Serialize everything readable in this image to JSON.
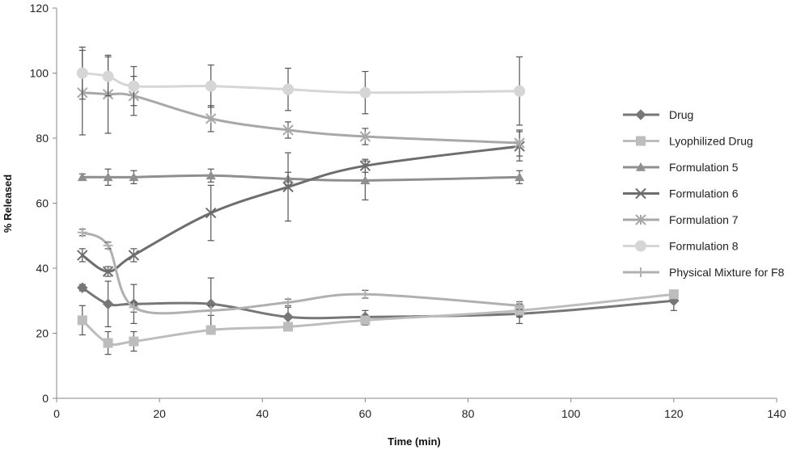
{
  "chart_data": {
    "type": "line",
    "title": "",
    "xlabel": "Time (min)",
    "ylabel": "% Released",
    "xlim": [
      0,
      140
    ],
    "ylim": [
      0,
      120
    ],
    "xticks": [
      "0",
      "20",
      "40",
      "60",
      "80",
      "100",
      "120",
      "140"
    ],
    "yticks": [
      "0",
      "20",
      "40",
      "60",
      "80",
      "100",
      "120"
    ],
    "grid": false,
    "legend": "right",
    "series": [
      {
        "name": "Drug",
        "color": "#777777",
        "marker": "diamond",
        "x": [
          5,
          10,
          15,
          30,
          45,
          60,
          90,
          120
        ],
        "y": [
          34,
          29,
          29,
          29,
          25,
          25,
          26,
          30
        ],
        "err": [
          1,
          7,
          6,
          8,
          3,
          2,
          3,
          3
        ]
      },
      {
        "name": "Lyophilized Drug",
        "color": "#bdbdbd",
        "marker": "square",
        "x": [
          5,
          10,
          15,
          30,
          45,
          60,
          90,
          120
        ],
        "y": [
          24,
          17,
          17.5,
          21,
          22,
          24,
          27,
          32
        ],
        "err": [
          4.5,
          3.5,
          3,
          1,
          1,
          1.5,
          2,
          1
        ]
      },
      {
        "name": "Formulation 5",
        "color": "#8f8f8f",
        "marker": "triangle",
        "x": [
          5,
          10,
          15,
          30,
          45,
          60,
          90
        ],
        "y": [
          68,
          68,
          68,
          68.5,
          67.5,
          67,
          68
        ],
        "err": [
          1,
          2.5,
          2,
          2,
          2,
          6,
          2
        ]
      },
      {
        "name": "Formulation 6",
        "color": "#6d6d6d",
        "marker": "x",
        "x": [
          5,
          10,
          15,
          30,
          45,
          60,
          90
        ],
        "y": [
          44,
          39,
          44,
          57,
          65,
          71.5,
          77.5
        ],
        "err": [
          2,
          1.5,
          2,
          8.5,
          10.5,
          2,
          4.5
        ]
      },
      {
        "name": "Formulation 7",
        "color": "#a8a8a8",
        "marker": "star",
        "x": [
          5,
          10,
          15,
          30,
          45,
          60,
          90
        ],
        "y": [
          94,
          93.5,
          93,
          86,
          82.5,
          80.5,
          78.5
        ],
        "err": [
          13,
          12,
          6,
          4,
          2.5,
          2.5,
          4
        ]
      },
      {
        "name": "Formulation 8",
        "color": "#d6d6d6",
        "marker": "circle",
        "x": [
          5,
          10,
          15,
          30,
          45,
          60,
          90
        ],
        "y": [
          100,
          99,
          96,
          96,
          95,
          94,
          94.5
        ],
        "err": [
          8,
          6,
          6,
          6.5,
          6.5,
          6.5,
          10.5
        ]
      },
      {
        "name": "Physical Mixture for F8",
        "color": "#b0b0b0",
        "marker": "plus",
        "x": [
          5,
          10,
          15,
          30,
          45,
          60,
          90
        ],
        "y": [
          51,
          47,
          28,
          27,
          29.5,
          32,
          28.5
        ],
        "err": [
          1,
          1,
          1.5,
          1.5,
          1,
          1.2,
          1.2
        ]
      }
    ]
  }
}
